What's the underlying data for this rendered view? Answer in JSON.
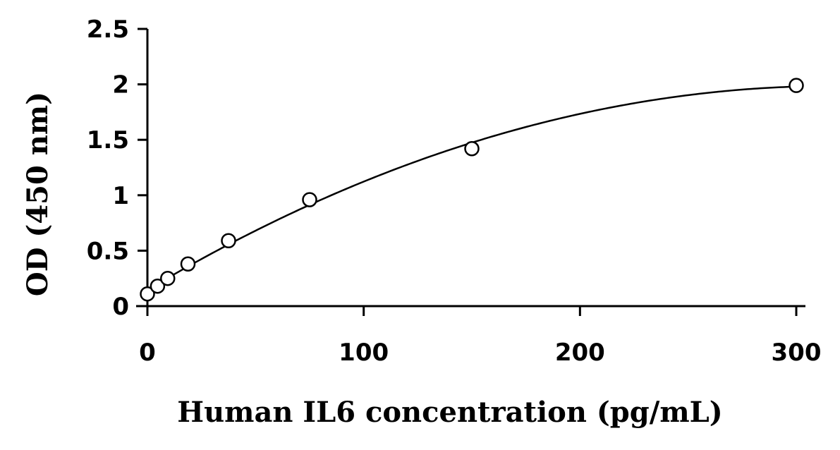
{
  "chart_data": {
    "type": "scatter",
    "title": "",
    "xlabel": "Human IL6 concentration (pg/mL)",
    "ylabel": "OD (450 nm)",
    "xlim": [
      0,
      300
    ],
    "ylim": [
      0,
      2.5
    ],
    "x_ticks": [
      0,
      100,
      200,
      300
    ],
    "x_tick_labels": [
      "0",
      "100",
      "200",
      "300"
    ],
    "y_ticks": [
      0,
      0.5,
      1,
      1.5,
      2,
      2.5
    ],
    "y_tick_labels": [
      "0",
      "0.5",
      "1",
      "1.5",
      "2",
      "2.5"
    ],
    "grid": false,
    "legend": "none",
    "marker": "open-circle",
    "trendline": "smooth fitted curve",
    "series": [
      {
        "points": [
          {
            "x": 0,
            "y": 0.11
          },
          {
            "x": 4.69,
            "y": 0.18
          },
          {
            "x": 9.38,
            "y": 0.25
          },
          {
            "x": 18.75,
            "y": 0.38
          },
          {
            "x": 37.5,
            "y": 0.59
          },
          {
            "x": 75,
            "y": 0.96
          },
          {
            "x": 150,
            "y": 1.42
          },
          {
            "x": 300,
            "y": 1.99
          }
        ]
      }
    ],
    "colors": {
      "axis": "#000000",
      "marker_stroke": "#000000",
      "marker_fill": "#ffffff",
      "curve": "#000000"
    }
  }
}
